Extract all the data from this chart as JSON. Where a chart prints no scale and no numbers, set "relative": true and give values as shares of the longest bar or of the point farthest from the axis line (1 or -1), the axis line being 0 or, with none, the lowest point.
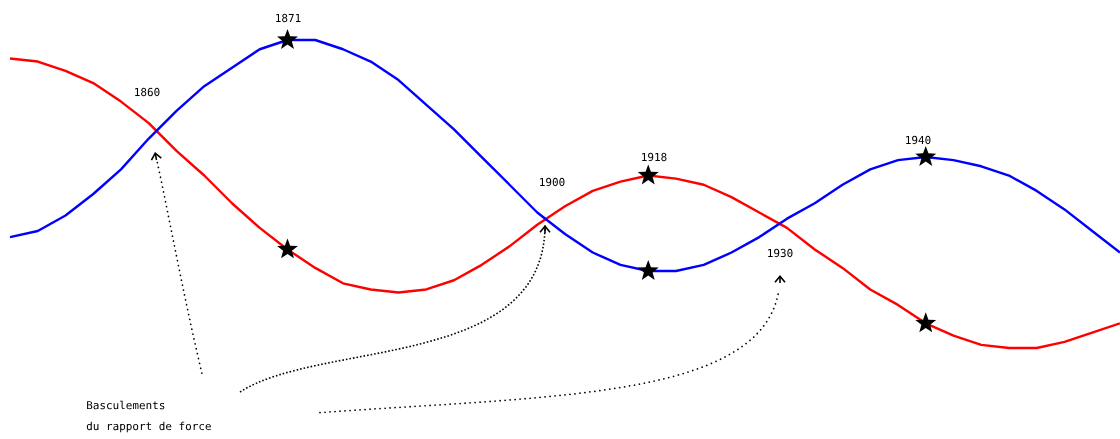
{
  "chart_data": {
    "type": "line",
    "relative": true,
    "categories": [
      null,
      null,
      null,
      null,
      null,
      null,
      null,
      null,
      null,
      null,
      null,
      null,
      null,
      null,
      null,
      null,
      null,
      null,
      null,
      null,
      null,
      null,
      null,
      null,
      null,
      null,
      null,
      null,
      null,
      null,
      null,
      null,
      null,
      null,
      null,
      null,
      null,
      null,
      null,
      null,
      null
    ],
    "series": [
      {
        "color": "#ff0000",
        "values": [
          0.94,
          0.93,
          0.9,
          0.86,
          0.8,
          0.73,
          0.64,
          0.56,
          0.47,
          0.39,
          0.32,
          0.26,
          0.21,
          0.19,
          0.18,
          0.19,
          0.22,
          0.27,
          0.33,
          0.4,
          0.46,
          0.51,
          0.54,
          0.56,
          0.55,
          0.53,
          0.49,
          0.44,
          0.39,
          0.32,
          0.26,
          0.19,
          0.14,
          0.08,
          0.04,
          0.01,
          0,
          0,
          0.02,
          0.05,
          0.08
        ]
      },
      {
        "color": "#0000ff",
        "values": [
          0.36,
          0.38,
          0.43,
          0.5,
          0.58,
          0.68,
          0.77,
          0.85,
          0.91,
          0.97,
          1,
          1,
          0.97,
          0.93,
          0.87,
          0.79,
          0.71,
          0.62,
          0.53,
          0.44,
          0.37,
          0.31,
          0.27,
          0.25,
          0.25,
          0.27,
          0.31,
          0.36,
          0.42,
          0.47,
          0.53,
          0.58,
          0.61,
          0.62,
          0.61,
          0.59,
          0.56,
          0.51,
          0.45,
          0.38,
          0.31
        ]
      }
    ],
    "annotations": [
      "1860",
      "1900",
      "1930",
      "Basculements",
      "du rapport de force",
      "1871",
      "1918",
      "1940"
    ]
  }
}
